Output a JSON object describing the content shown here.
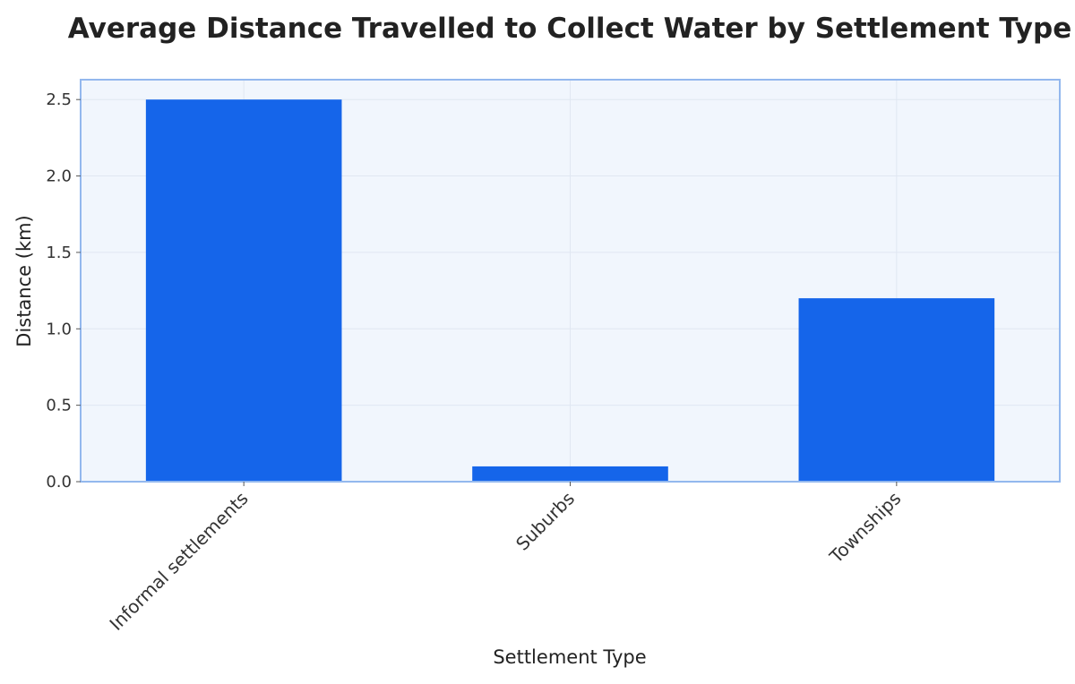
{
  "chart_data": {
    "type": "bar",
    "title": "Average Distance Travelled to Collect Water by Settlement Type",
    "xlabel": "Settlement Type",
    "ylabel": "Distance (km)",
    "categories": [
      "Informal settlements",
      "Suburbs",
      "Townships"
    ],
    "values": [
      2.5,
      0.1,
      1.2
    ],
    "ylim": [
      0,
      2.63
    ],
    "yticks": [
      "0.0",
      "0.5",
      "1.0",
      "1.5",
      "2.0",
      "2.5"
    ],
    "grid": true,
    "legend": "none",
    "colors": {
      "bar": "#1565ea",
      "plot_background": "#f1f6fd",
      "frame": "#93b8ee",
      "grid": "#e0e7f2"
    }
  }
}
